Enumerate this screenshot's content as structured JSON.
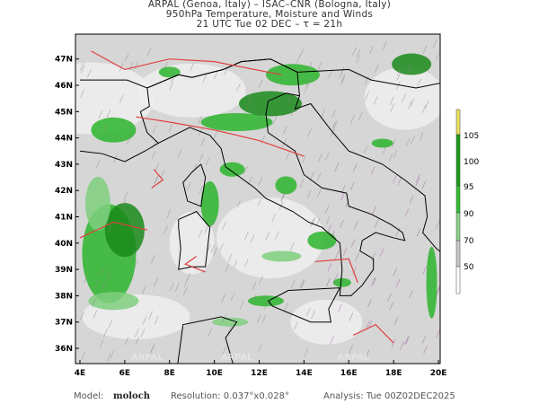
{
  "header": {
    "line1": "ARPAL (Genoa, Italy)  –  ISAC–CNR (Bologna, Italy)",
    "line2": "950hPa Temperature, Moisture and Winds",
    "line3": "21 UTC Tue 02 DEC  –  τ = 21h"
  },
  "map": {
    "lon_labels": [
      "4E",
      "6E",
      "8E",
      "10E",
      "12E",
      "14E",
      "16E",
      "18E",
      "20E"
    ],
    "lat_labels": [
      "47N",
      "46N",
      "45N",
      "44N",
      "43N",
      "42N",
      "41N",
      "40N",
      "39N",
      "38N",
      "37N",
      "36N"
    ],
    "watermark": "ARPAL",
    "colors": {
      "land_grey": "#c4c4c4",
      "green_light": "#7fcf7f",
      "green": "#2db52d",
      "green_dark": "#1a8a1a",
      "yellow": "#e8e060",
      "contour_red": "#e04040",
      "wind_barbs": "#9a5fa0"
    }
  },
  "colorbar": {
    "labels": [
      "105",
      "100",
      "95",
      "90",
      "70",
      "50"
    ],
    "colors": [
      "#e8e060",
      "#1a9a1a",
      "#2fbf2f",
      "#88d488",
      "#c8c8c8",
      "#ffffff"
    ]
  },
  "footer": {
    "model_label": "Model:",
    "model": "moloch",
    "resolution": "Resolution: 0.037°x0.028°",
    "analysis": "Analysis: Tue 00Z02DEC2025"
  }
}
